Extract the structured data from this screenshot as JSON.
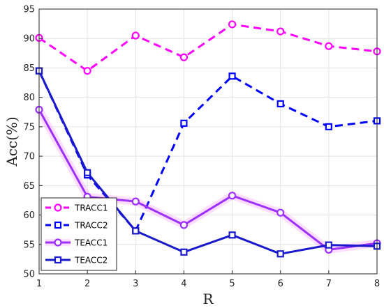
{
  "chart_data": {
    "type": "line",
    "title": "",
    "xlabel": "R",
    "ylabel": "Acc(%)",
    "x": [
      1,
      2,
      3,
      4,
      5,
      6,
      7,
      8
    ],
    "xlim": [
      1,
      8
    ],
    "ylim": [
      50,
      95
    ],
    "xticks": [
      "1",
      "2",
      "3",
      "4",
      "5",
      "6",
      "7",
      "8"
    ],
    "yticks": [
      "50",
      "55",
      "60",
      "65",
      "70",
      "75",
      "80",
      "85",
      "90",
      "95"
    ],
    "grid": true,
    "legend_position": "bottom-left",
    "series": [
      {
        "name": "TRACC1",
        "values": [
          90.1,
          84.5,
          90.5,
          86.8,
          92.4,
          91.2,
          88.7,
          87.8
        ],
        "color": "#ff00ff",
        "dash": true,
        "marker": "circle",
        "glow": false
      },
      {
        "name": "TRACC2",
        "values": [
          84.5,
          66.8,
          57.3,
          75.6,
          83.6,
          78.9,
          75.0,
          76.0
        ],
        "color": "#0000ff",
        "dash": true,
        "marker": "square",
        "glow": false
      },
      {
        "name": "TEACC1",
        "values": [
          77.9,
          63.1,
          62.3,
          58.3,
          63.3,
          60.4,
          54.1,
          55.2
        ],
        "color": "#9b30ff",
        "dash": false,
        "marker": "circle",
        "glow": true
      },
      {
        "name": "TEACC2",
        "values": [
          84.5,
          67.2,
          57.3,
          53.7,
          56.6,
          53.4,
          54.9,
          54.7
        ],
        "color": "#1a1acc",
        "dash": false,
        "marker": "square",
        "glow": false
      }
    ]
  }
}
